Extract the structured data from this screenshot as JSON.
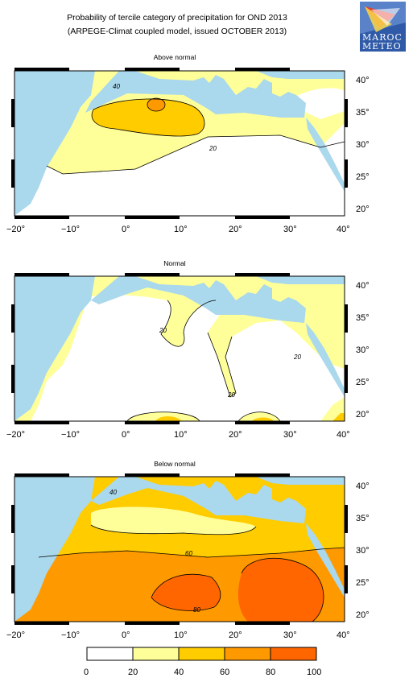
{
  "title": {
    "line1": "Probability of tercile category of precipitation for OND 2013",
    "line2": "(ARPEGE-Climat coupled model, issued OCTOBER 2013)"
  },
  "logo": {
    "line1": "MAROC",
    "line2": "METEO"
  },
  "map": {
    "lon_ticks": [
      "−20°",
      "−10°",
      "0°",
      "10°",
      "20°",
      "30°",
      "40°"
    ],
    "lat_ticks": [
      "40°",
      "35°",
      "30°",
      "25°",
      "20°"
    ]
  },
  "panels": [
    {
      "title": "Above normal",
      "contour_labels": [
        "40",
        "20"
      ]
    },
    {
      "title": "Normal",
      "contour_labels": [
        "20",
        "20",
        "20"
      ]
    },
    {
      "title": "Below normal",
      "contour_labels": [
        "40",
        "60",
        "80"
      ]
    }
  ],
  "colorbar": {
    "labels": [
      "0",
      "20",
      "40",
      "60",
      "80",
      "100"
    ],
    "colors": [
      "#ffffff",
      "#ffff99",
      "#ffcc00",
      "#ff9900",
      "#ff6600"
    ]
  }
}
